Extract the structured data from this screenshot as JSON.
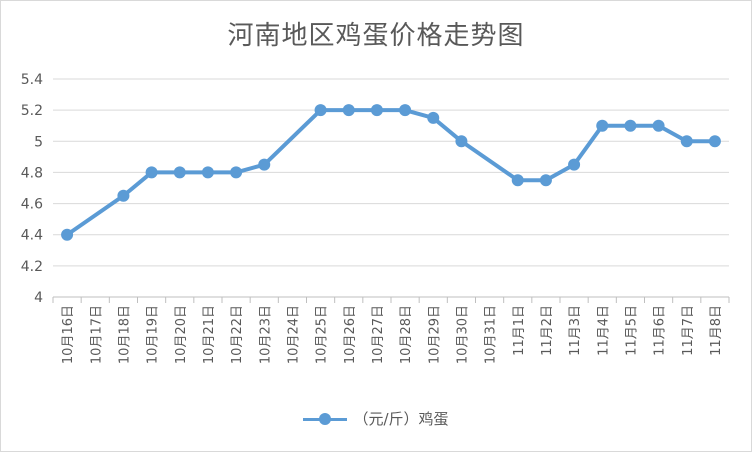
{
  "chart_data": {
    "type": "line",
    "title": "河南地区鸡蛋价格走势图",
    "categories": [
      "10月16日",
      "10月17日",
      "10月18日",
      "10月19日",
      "10月20日",
      "10月21日",
      "10月22日",
      "10月23日",
      "10月24日",
      "10月25日",
      "10月26日",
      "10月27日",
      "10月28日",
      "10月29日",
      "10月30日",
      "10月31日",
      "11月1日",
      "11月2日",
      "11月3日",
      "11月4日",
      "11月5日",
      "11月6日",
      "11月7日",
      "11月8日"
    ],
    "series": [
      {
        "name": "（元/斤）鸡蛋",
        "values": [
          4.4,
          null,
          4.65,
          4.8,
          4.8,
          4.8,
          4.8,
          4.85,
          null,
          5.2,
          5.2,
          5.2,
          5.2,
          5.15,
          5.0,
          null,
          4.75,
          4.75,
          4.85,
          5.1,
          5.1,
          5.1,
          5.0,
          5.0
        ]
      }
    ],
    "ylim": [
      4,
      5.4
    ],
    "yticks": [
      "4",
      "4.2",
      "4.4",
      "4.6",
      "4.8",
      "5",
      "5.2",
      "5.4"
    ],
    "grid": true,
    "legend_position": "bottom",
    "color": "#5b9bd5"
  }
}
